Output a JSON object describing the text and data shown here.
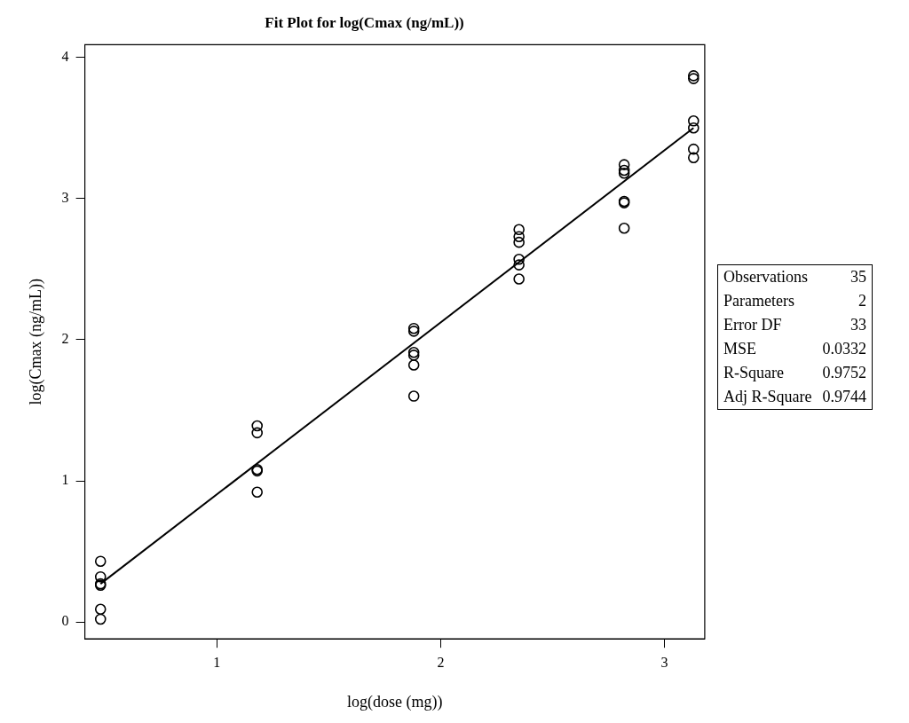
{
  "chart_data": {
    "type": "scatter",
    "title": "Fit Plot for log(Cmax (ng/mL))",
    "xlabel": "log(dose (mg))",
    "ylabel": "log(Cmax (ng/mL))",
    "xlim": [
      0.41,
      3.18
    ],
    "ylim": [
      -0.12,
      4.09
    ],
    "xticks": [
      1,
      2,
      3
    ],
    "yticks": [
      0,
      1,
      2,
      3,
      4
    ],
    "grid": false,
    "legend": false,
    "series": [
      {
        "type": "scatter",
        "marker": "circle",
        "color": "#000000",
        "x": [
          0.48,
          0.48,
          0.48,
          0.48,
          0.48,
          0.48,
          1.18,
          1.18,
          1.18,
          1.18,
          1.18,
          1.88,
          1.88,
          1.88,
          1.88,
          1.88,
          1.88,
          2.35,
          2.35,
          2.35,
          2.35,
          2.35,
          2.35,
          2.82,
          2.82,
          2.82,
          2.82,
          2.82,
          2.82,
          3.13,
          3.13,
          3.13,
          3.13,
          3.13,
          3.13
        ],
        "values": [
          0.43,
          0.32,
          0.27,
          0.26,
          0.09,
          0.02,
          1.39,
          1.34,
          1.08,
          1.07,
          0.92,
          2.08,
          2.06,
          1.91,
          1.89,
          1.82,
          1.6,
          2.78,
          2.73,
          2.69,
          2.57,
          2.53,
          2.43,
          3.24,
          3.2,
          3.18,
          2.98,
          2.97,
          2.79,
          3.87,
          3.85,
          3.55,
          3.5,
          3.35,
          3.29
        ]
      },
      {
        "type": "line",
        "color": "#000000",
        "x": [
          0.48,
          3.13
        ],
        "values": [
          0.27,
          3.5
        ]
      }
    ],
    "annotations": [
      "Observations",
      "35",
      "Parameters",
      "2",
      "Error DF",
      "33",
      "MSE",
      "0.0332",
      "R-Square",
      "0.9752",
      "Adj R-Square",
      "0.9744"
    ]
  }
}
